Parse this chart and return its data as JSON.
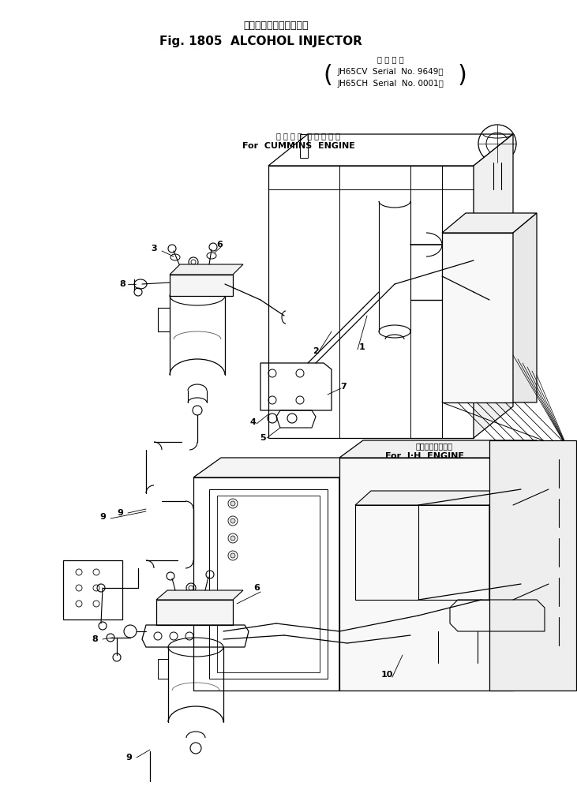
{
  "title_japanese": "アルコールインジェクタ",
  "title_english": "Fig. 1805  ALCOHOL INJECTOR",
  "serial_label_japanese": "適 用 号 機",
  "serial_line1": "JH65CV  Serial  No. 9649～",
  "serial_line2": "JH65CH  Serial  No. 0001～",
  "label_cummins_jp": "カ ミ ン ス  エ ン ジ ン 用",
  "label_cummins_en": "For  CUMMINS  ENGINE",
  "label_ih_jp": "インタエンジン用",
  "label_ih_en": "For  I·H  ENGINE",
  "bg_color": "#ffffff",
  "lc": "#000000",
  "tc": "#000000"
}
